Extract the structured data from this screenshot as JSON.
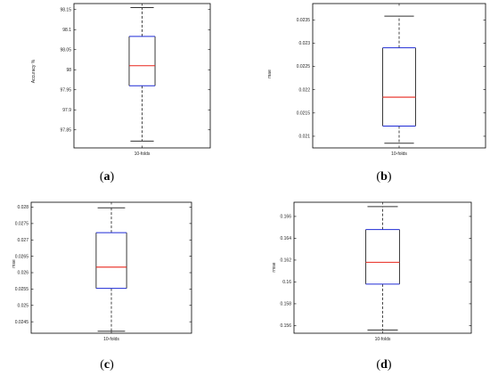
{
  "colors": {
    "box": "#1f2bd6",
    "median": "#e8261c",
    "whisker": "#333333",
    "frame": "#000000"
  },
  "chart_data": [
    {
      "type": "box",
      "caption": "(a)",
      "ylabel": "Accuracy %",
      "xlabel": "10-folds",
      "ylim": [
        97.805,
        98.165
      ],
      "yticks": [
        {
          "v": 97.85,
          "label": "97.85"
        },
        {
          "v": 97.9,
          "label": "97.9"
        },
        {
          "v": 97.95,
          "label": "97.95"
        },
        {
          "v": 98.0,
          "label": "98"
        },
        {
          "v": 98.05,
          "label": "98.05"
        },
        {
          "v": 98.1,
          "label": "98.1"
        },
        {
          "v": 98.15,
          "label": "98.15"
        }
      ],
      "stats": {
        "min": 97.822,
        "q1": 97.96,
        "median": 98.01,
        "q3": 98.083,
        "max": 98.155
      }
    },
    {
      "type": "box",
      "caption": "(b)",
      "ylabel": "mae",
      "xlabel": "10-folds",
      "ylim": [
        0.02075,
        0.02385
      ],
      "yticks": [
        {
          "v": 0.021,
          "label": "0.021"
        },
        {
          "v": 0.0215,
          "label": "0.0215"
        },
        {
          "v": 0.022,
          "label": "0.022"
        },
        {
          "v": 0.0225,
          "label": "0.0225"
        },
        {
          "v": 0.023,
          "label": "0.023"
        },
        {
          "v": 0.0235,
          "label": "0.0235"
        }
      ],
      "stats": {
        "min": 0.02085,
        "q1": 0.02122,
        "median": 0.02184,
        "q3": 0.0229,
        "max": 0.02358
      }
    },
    {
      "type": "box",
      "caption": "(c)",
      "ylabel": "mse",
      "xlabel": "10-folds",
      "ylim": [
        0.02415,
        0.02815
      ],
      "yticks": [
        {
          "v": 0.0245,
          "label": "0.0245"
        },
        {
          "v": 0.025,
          "label": "0.025"
        },
        {
          "v": 0.0255,
          "label": "0.0255"
        },
        {
          "v": 0.026,
          "label": "0.026"
        },
        {
          "v": 0.0265,
          "label": "0.0265"
        },
        {
          "v": 0.027,
          "label": "0.027"
        },
        {
          "v": 0.0275,
          "label": "0.0275"
        },
        {
          "v": 0.028,
          "label": "0.028"
        }
      ],
      "stats": {
        "min": 0.02421,
        "q1": 0.02552,
        "median": 0.02617,
        "q3": 0.02722,
        "max": 0.02798
      }
    },
    {
      "type": "box",
      "caption": "(d)",
      "ylabel": "rmse",
      "xlabel": "10-folds",
      "ylim": [
        0.1553,
        0.1673
      ],
      "yticks": [
        {
          "v": 0.156,
          "label": "0.156"
        },
        {
          "v": 0.158,
          "label": "0.158"
        },
        {
          "v": 0.16,
          "label": "0.16"
        },
        {
          "v": 0.162,
          "label": "0.162"
        },
        {
          "v": 0.164,
          "label": "0.164"
        },
        {
          "v": 0.166,
          "label": "0.166"
        }
      ],
      "stats": {
        "min": 0.1556,
        "q1": 0.1598,
        "median": 0.1618,
        "q3": 0.1648,
        "max": 0.1669
      }
    }
  ]
}
